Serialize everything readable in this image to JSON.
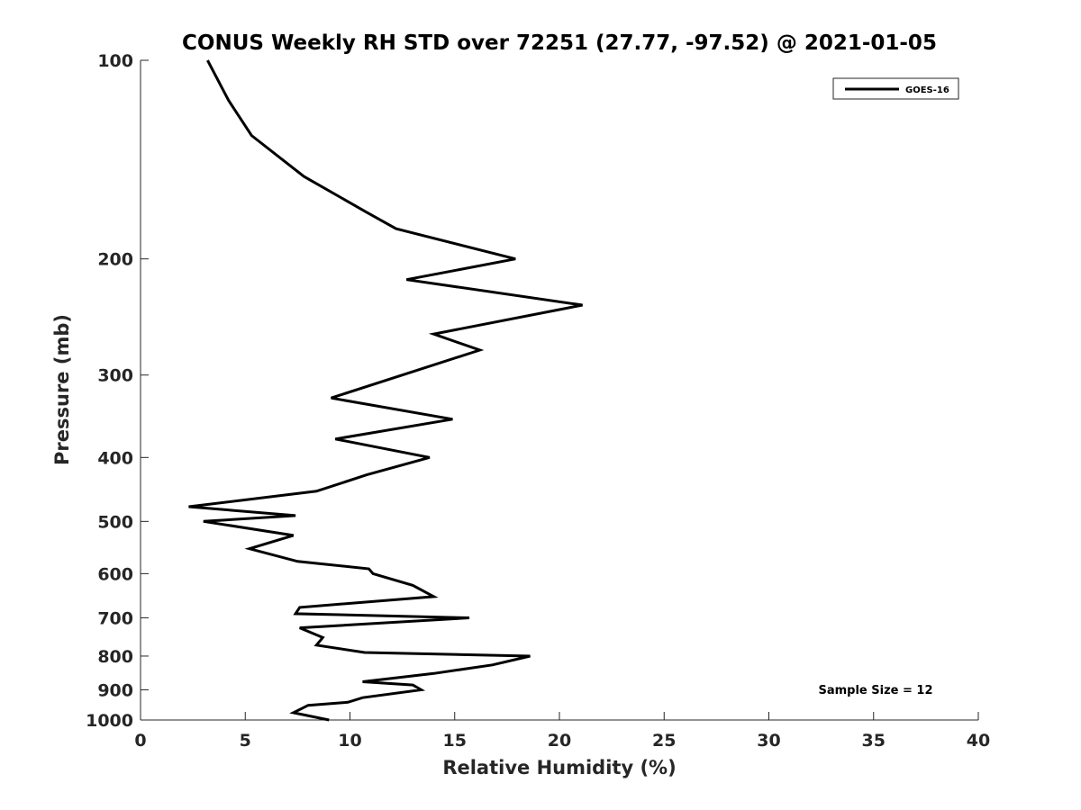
{
  "chart_data": {
    "type": "line",
    "title": "CONUS Weekly RH STD over 72251 (27.77, -97.52) @ 2021-01-05",
    "xlabel": "Relative Humidity (%)",
    "ylabel": "Pressure (mb)",
    "xlim": [
      0,
      40
    ],
    "ylim": [
      100,
      1000
    ],
    "y_scale": "log",
    "y_reversed": true,
    "x_ticks": [
      0,
      5,
      10,
      15,
      20,
      25,
      30,
      35,
      40
    ],
    "x_tick_labels": [
      "0",
      "5",
      "10",
      "15",
      "20",
      "25",
      "30",
      "35",
      "40"
    ],
    "y_ticks": [
      100,
      200,
      300,
      400,
      500,
      600,
      700,
      800,
      900,
      1000
    ],
    "y_tick_labels": [
      "100",
      "200",
      "300",
      "400",
      "500",
      "600",
      "700",
      "800",
      "900",
      "1000"
    ],
    "grid": false,
    "legend_position": "top-right",
    "series": [
      {
        "name": "GOES-16",
        "color": "#000000",
        "points": [
          [
            3.2,
            100
          ],
          [
            4.2,
            115
          ],
          [
            5.3,
            130
          ],
          [
            7.8,
            150
          ],
          [
            10.8,
            170
          ],
          [
            12.2,
            180
          ],
          [
            17.9,
            200
          ],
          [
            12.7,
            215
          ],
          [
            21.1,
            235
          ],
          [
            14.0,
            260
          ],
          [
            16.2,
            275
          ],
          [
            9.1,
            325
          ],
          [
            14.9,
            350
          ],
          [
            9.3,
            375
          ],
          [
            13.8,
            400
          ],
          [
            10.8,
            425
          ],
          [
            8.4,
            450
          ],
          [
            2.3,
            475
          ],
          [
            7.4,
            490
          ],
          [
            3.0,
            500
          ],
          [
            7.3,
            525
          ],
          [
            5.2,
            550
          ],
          [
            7.5,
            575
          ],
          [
            10.9,
            590
          ],
          [
            11.1,
            600
          ],
          [
            13.0,
            625
          ],
          [
            14.0,
            650
          ],
          [
            7.6,
            675
          ],
          [
            7.4,
            690
          ],
          [
            15.7,
            700
          ],
          [
            7.6,
            725
          ],
          [
            8.7,
            750
          ],
          [
            8.4,
            770
          ],
          [
            10.7,
            790
          ],
          [
            18.6,
            800
          ],
          [
            16.8,
            825
          ],
          [
            14.0,
            850
          ],
          [
            10.6,
            875
          ],
          [
            13.0,
            885
          ],
          [
            13.4,
            900
          ],
          [
            10.6,
            925
          ],
          [
            9.9,
            940
          ],
          [
            8.0,
            950
          ],
          [
            7.3,
            975
          ],
          [
            9.0,
            1000
          ]
        ]
      }
    ],
    "annotations": [
      "Sample Size = 12"
    ]
  }
}
